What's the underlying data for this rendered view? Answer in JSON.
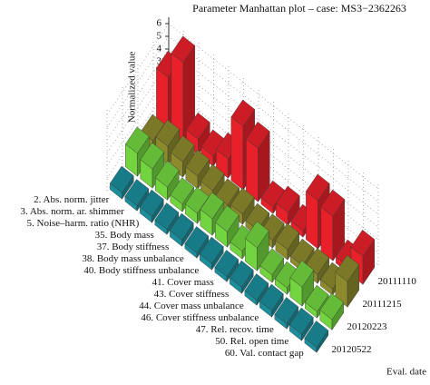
{
  "chart_data": {
    "type": "bar3d",
    "title": "Parameter Manhattan plot – case: MS3−2362263",
    "zlabel": "Normalized value",
    "xlabel": "Eval. date",
    "categories": [
      "2. Abs. norm. jitter",
      "3. Abs. norm. ar. shimmer",
      "5. Noise–harm. ratio (NHR)",
      "35. Body mass",
      "37. Body stiffness",
      "38. Body mass unbalance",
      "40. Body stiffness unbalance",
      "41. Cover mass",
      "43. Cover stiffness",
      "44. Cover mass unbalance",
      "46. Cover stiffness unbalance",
      "47. Rel. recov. time",
      "50. Rel. open time",
      "60. Val. contact gap"
    ],
    "series": [
      {
        "name": "20111110",
        "color": "#e8202a",
        "values": [
          4.2,
          6.3,
          1.2,
          0.8,
          1.5,
          5.0,
          4.2,
          0.5,
          1.0,
          0.5,
          3.8,
          3.5,
          0.5,
          2.2
        ]
      },
      {
        "name": "20111215",
        "color": "#8c8a2c",
        "values": [
          1.0,
          1.5,
          1.2,
          1.0,
          0.8,
          0.6,
          0.8,
          0.5,
          0.6,
          0.8,
          0.5,
          0.7,
          0.5,
          2.0
        ]
      },
      {
        "name": "20120223",
        "color": "#72d43e",
        "values": [
          1.8,
          1.5,
          1.0,
          0.6,
          0.8,
          1.3,
          1.2,
          0.6,
          1.8,
          0.6,
          0.5,
          1.5,
          0.5,
          0.8
        ]
      },
      {
        "name": "20120522",
        "color": "#1b8d9b",
        "values": [
          0.5,
          0.4,
          0.5,
          0.4,
          0.5,
          0.4,
          0.5,
          0.4,
          0.5,
          0.4,
          0.5,
          0.4,
          0.5,
          0.4
        ]
      }
    ],
    "ylim": [
      0,
      6.5
    ],
    "yticks": [
      0,
      1,
      2,
      3,
      4,
      5,
      6
    ],
    "grid": true
  }
}
